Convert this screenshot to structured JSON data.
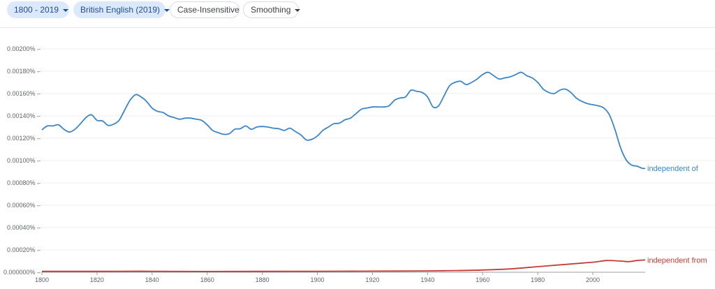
{
  "toolbar": {
    "range": "1800 - 2019",
    "corpus": "British English (2019)",
    "case": "Case-Insensitive",
    "smoothing": "Smoothing"
  },
  "colors": {
    "independent_of": "#3a86c8",
    "independent_from": "#c43c39",
    "grid": "#eeeeee",
    "axis": "#9e9e9e"
  },
  "chart_data": {
    "type": "line",
    "title": "",
    "xlabel": "",
    "ylabel": "",
    "xlim": [
      1800,
      2019
    ],
    "ylim": [
      0,
      0.002
    ],
    "y_ticks": [
      "0.000000%",
      "0.00020%",
      "0.00040%",
      "0.00060%",
      "0.00080%",
      "0.00100%",
      "0.00120%",
      "0.00140%",
      "0.00160%",
      "0.00180%",
      "0.00200%"
    ],
    "x_ticks": [
      "1800",
      "1820",
      "1840",
      "1860",
      "1880",
      "1900",
      "1920",
      "1940",
      "1960",
      "1980",
      "2000"
    ],
    "legend": "inline-end-of-lines",
    "series": [
      {
        "name": "independent of",
        "points": [
          [
            1800,
            0.001275
          ],
          [
            1802,
            0.00131
          ],
          [
            1804,
            0.00131
          ],
          [
            1806,
            0.00132
          ],
          [
            1808,
            0.00128
          ],
          [
            1810,
            0.001255
          ],
          [
            1812,
            0.00128
          ],
          [
            1814,
            0.00133
          ],
          [
            1816,
            0.001385
          ],
          [
            1818,
            0.00141
          ],
          [
            1820,
            0.00136
          ],
          [
            1822,
            0.001355
          ],
          [
            1824,
            0.001315
          ],
          [
            1826,
            0.001325
          ],
          [
            1828,
            0.00136
          ],
          [
            1830,
            0.00145
          ],
          [
            1832,
            0.00154
          ],
          [
            1834,
            0.00159
          ],
          [
            1836,
            0.00157
          ],
          [
            1838,
            0.00153
          ],
          [
            1840,
            0.00147
          ],
          [
            1842,
            0.00144
          ],
          [
            1844,
            0.00143
          ],
          [
            1846,
            0.0014
          ],
          [
            1848,
            0.001385
          ],
          [
            1850,
            0.00137
          ],
          [
            1852,
            0.00138
          ],
          [
            1854,
            0.00138
          ],
          [
            1856,
            0.00137
          ],
          [
            1858,
            0.00136
          ],
          [
            1860,
            0.00132
          ],
          [
            1862,
            0.00127
          ],
          [
            1864,
            0.00125
          ],
          [
            1866,
            0.001235
          ],
          [
            1868,
            0.00124
          ],
          [
            1870,
            0.00128
          ],
          [
            1872,
            0.001285
          ],
          [
            1874,
            0.00131
          ],
          [
            1876,
            0.00128
          ],
          [
            1878,
            0.0013
          ],
          [
            1880,
            0.001305
          ],
          [
            1882,
            0.0013
          ],
          [
            1884,
            0.00129
          ],
          [
            1886,
            0.001285
          ],
          [
            1888,
            0.00127
          ],
          [
            1890,
            0.00129
          ],
          [
            1892,
            0.00126
          ],
          [
            1894,
            0.00123
          ],
          [
            1896,
            0.001185
          ],
          [
            1898,
            0.00119
          ],
          [
            1900,
            0.00122
          ],
          [
            1902,
            0.00127
          ],
          [
            1904,
            0.0013
          ],
          [
            1906,
            0.00133
          ],
          [
            1908,
            0.001335
          ],
          [
            1910,
            0.001365
          ],
          [
            1912,
            0.00138
          ],
          [
            1914,
            0.00142
          ],
          [
            1916,
            0.00146
          ],
          [
            1918,
            0.00147
          ],
          [
            1920,
            0.00148
          ],
          [
            1922,
            0.00148
          ],
          [
            1924,
            0.00148
          ],
          [
            1926,
            0.00149
          ],
          [
            1928,
            0.00154
          ],
          [
            1930,
            0.00156
          ],
          [
            1932,
            0.00157
          ],
          [
            1934,
            0.00163
          ],
          [
            1936,
            0.00162
          ],
          [
            1938,
            0.00161
          ],
          [
            1940,
            0.00157
          ],
          [
            1942,
            0.00148
          ],
          [
            1944,
            0.00149
          ],
          [
            1946,
            0.00158
          ],
          [
            1948,
            0.00167
          ],
          [
            1950,
            0.0017
          ],
          [
            1952,
            0.00171
          ],
          [
            1954,
            0.00168
          ],
          [
            1956,
            0.0017
          ],
          [
            1958,
            0.00173
          ],
          [
            1960,
            0.00177
          ],
          [
            1962,
            0.00179
          ],
          [
            1964,
            0.00176
          ],
          [
            1966,
            0.00173
          ],
          [
            1968,
            0.00174
          ],
          [
            1970,
            0.00175
          ],
          [
            1972,
            0.00177
          ],
          [
            1974,
            0.00179
          ],
          [
            1976,
            0.00176
          ],
          [
            1978,
            0.00174
          ],
          [
            1980,
            0.0017
          ],
          [
            1982,
            0.00164
          ],
          [
            1984,
            0.00161
          ],
          [
            1986,
            0.0016
          ],
          [
            1988,
            0.00163
          ],
          [
            1990,
            0.00164
          ],
          [
            1992,
            0.00161
          ],
          [
            1994,
            0.00156
          ],
          [
            1996,
            0.00153
          ],
          [
            1998,
            0.00151
          ],
          [
            2000,
            0.0015
          ],
          [
            2002,
            0.00149
          ],
          [
            2004,
            0.00147
          ],
          [
            2006,
            0.00141
          ],
          [
            2008,
            0.00128
          ],
          [
            2010,
            0.00112
          ],
          [
            2012,
            0.00101
          ],
          [
            2014,
            0.00096
          ],
          [
            2016,
            0.00095
          ],
          [
            2018,
            0.00093
          ],
          [
            2019,
            0.00093
          ]
        ]
      },
      {
        "name": "independent from",
        "points": [
          [
            1800,
            8e-06
          ],
          [
            1820,
            8e-06
          ],
          [
            1840,
            9e-06
          ],
          [
            1860,
            7e-06
          ],
          [
            1880,
            8e-06
          ],
          [
            1900,
            9e-06
          ],
          [
            1920,
            1e-05
          ],
          [
            1940,
            1.2e-05
          ],
          [
            1950,
            1.5e-05
          ],
          [
            1960,
            2e-05
          ],
          [
            1970,
            3e-05
          ],
          [
            1980,
            5e-05
          ],
          [
            1990,
            7e-05
          ],
          [
            2000,
            9e-05
          ],
          [
            2005,
            0.000105
          ],
          [
            2010,
            0.0001
          ],
          [
            2013,
            9.5e-05
          ],
          [
            2016,
            0.000105
          ],
          [
            2019,
            0.00011
          ]
        ]
      }
    ]
  }
}
